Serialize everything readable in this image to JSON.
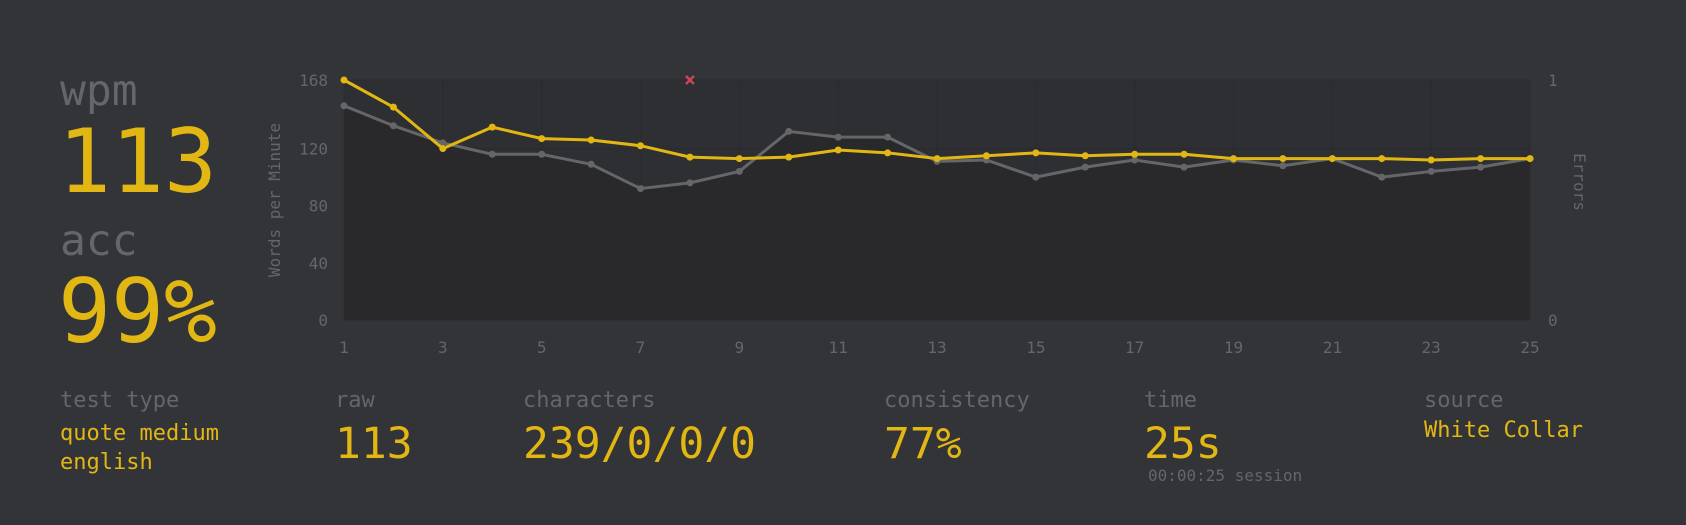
{
  "chart_data": {
    "type": "line",
    "ylabel": "Words per Minute",
    "y2label": "Errors",
    "x": [
      1,
      2,
      3,
      4,
      5,
      6,
      7,
      8,
      9,
      10,
      11,
      12,
      13,
      14,
      15,
      16,
      17,
      18,
      19,
      20,
      21,
      22,
      23,
      24,
      25
    ],
    "xlim": [
      1,
      25
    ],
    "xticks": [
      1,
      3,
      5,
      7,
      9,
      11,
      13,
      15,
      17,
      19,
      21,
      23,
      25
    ],
    "ylim": [
      0,
      168
    ],
    "yticks": [
      0,
      40,
      80,
      120,
      168
    ],
    "y2lim": [
      0,
      1
    ],
    "y2ticks": [
      0,
      1
    ],
    "grid": true,
    "series": [
      {
        "color": "#646669",
        "values": [
          150,
          136,
          124,
          116,
          116,
          109,
          92,
          96,
          104,
          132,
          128,
          128,
          111,
          112,
          100,
          107,
          112,
          107,
          112,
          108,
          113,
          100,
          104,
          107,
          113
        ]
      },
      {
        "color": "#e2b714",
        "values": [
          168,
          149,
          120,
          135,
          127,
          126,
          122,
          114,
          113,
          114,
          119,
          117,
          113,
          115,
          117,
          115,
          116,
          116,
          113,
          113,
          113,
          113,
          112,
          113,
          113
        ]
      },
      {
        "color": "#ca4754",
        "axis": "y2",
        "x": [
          8
        ],
        "values": [
          1
        ]
      }
    ]
  },
  "summary": {
    "wpm_label": "wpm",
    "wpm": "113",
    "acc_label": "acc",
    "acc": "99%"
  },
  "stats": [
    {
      "label": "test type",
      "lines": [
        "quote medium",
        "english"
      ]
    },
    {
      "label": "raw",
      "value": "113"
    },
    {
      "label": "characters",
      "value": "239/0/0/0"
    },
    {
      "label": "consistency",
      "value": "77%"
    },
    {
      "label": "time",
      "value": "25s",
      "note": "00:00:25 session"
    },
    {
      "label": "source",
      "value": "White Collar"
    }
  ]
}
